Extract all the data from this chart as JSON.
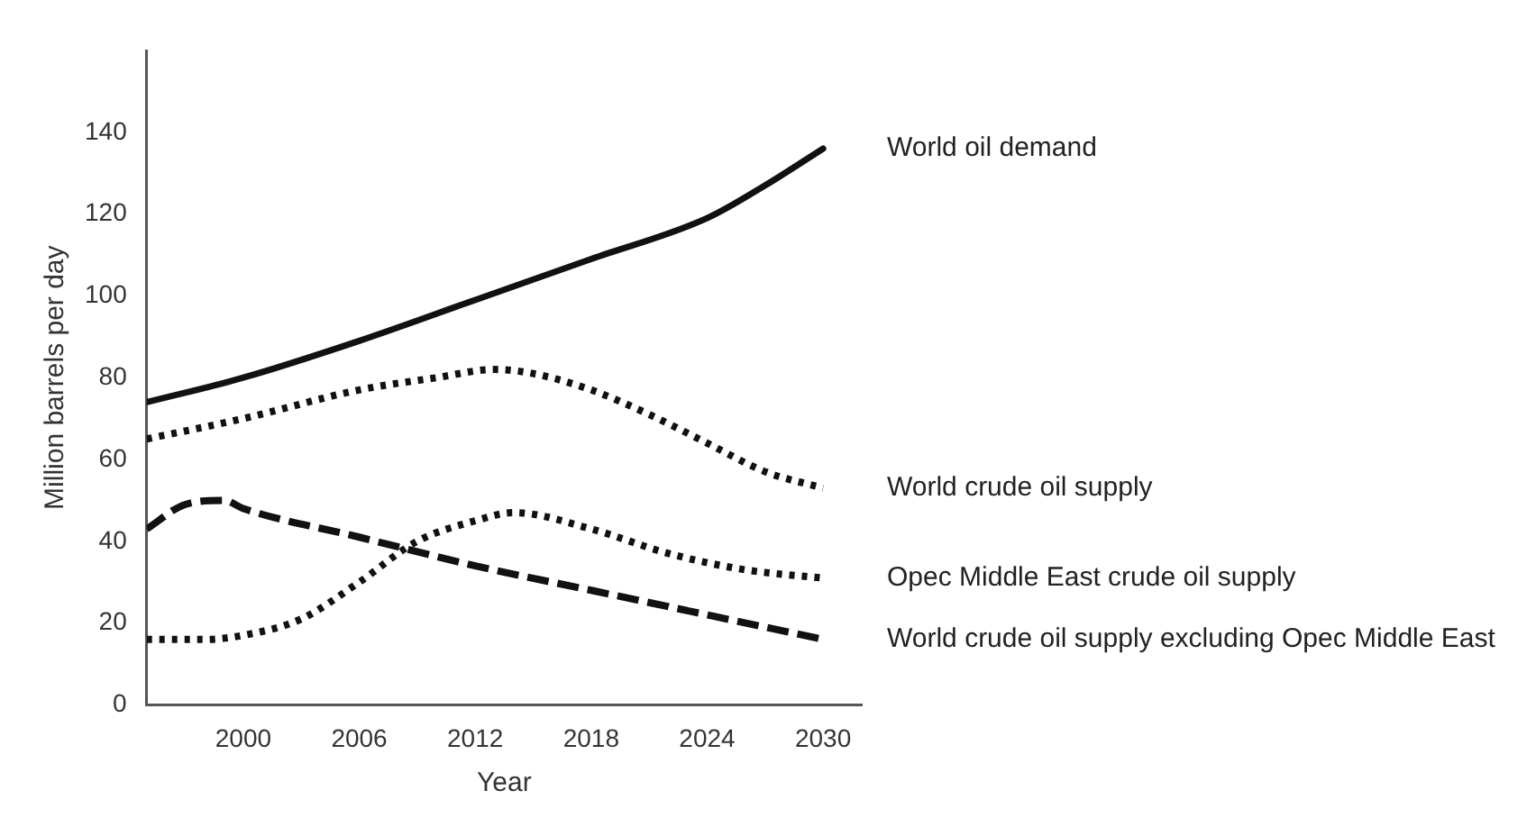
{
  "chart_data": {
    "type": "line",
    "xlabel": "Year",
    "ylabel": "Million barrels per day",
    "xlim": [
      1995,
      2032
    ],
    "xticks": [
      2000,
      2006,
      2012,
      2018,
      2024,
      2030
    ],
    "ylim": [
      0,
      160
    ],
    "yticks": [
      0,
      20,
      40,
      60,
      80,
      100,
      120,
      140
    ],
    "grid": false,
    "legend": false,
    "marker": "none",
    "series": [
      {
        "name": "World oil demand",
        "color": "#111111",
        "line_style": "solid",
        "x": [
          1995,
          2000,
          2006,
          2012,
          2018,
          2024,
          2027,
          2030
        ],
        "values": [
          74,
          80,
          89,
          99,
          109,
          119,
          127,
          136
        ]
      },
      {
        "name": "World crude oil supply",
        "color": "#111111",
        "line_style": "dotted",
        "x": [
          1995,
          2000,
          2006,
          2010,
          2013,
          2015,
          2018,
          2021,
          2024,
          2027,
          2030
        ],
        "values": [
          65,
          70,
          77,
          80,
          82,
          81,
          77,
          71,
          64,
          57,
          53
        ]
      },
      {
        "name": "Opec Middle East crude oil supply",
        "color": "#111111",
        "line_style": "dotted",
        "x": [
          1995,
          1998,
          2000,
          2003,
          2006,
          2009,
          2012,
          2014,
          2018,
          2022,
          2026,
          2030
        ],
        "values": [
          16,
          16,
          17,
          21,
          30,
          40,
          45,
          47,
          43,
          37,
          33,
          31
        ]
      },
      {
        "name": "World crude oil supply excluding Opec Middle East",
        "color": "#111111",
        "line_style": "dashed",
        "x": [
          1995,
          1997,
          1999,
          2000,
          2006,
          2012,
          2018,
          2024,
          2030
        ],
        "values": [
          43,
          49,
          50,
          48,
          41,
          34,
          28,
          22,
          16
        ]
      }
    ]
  }
}
